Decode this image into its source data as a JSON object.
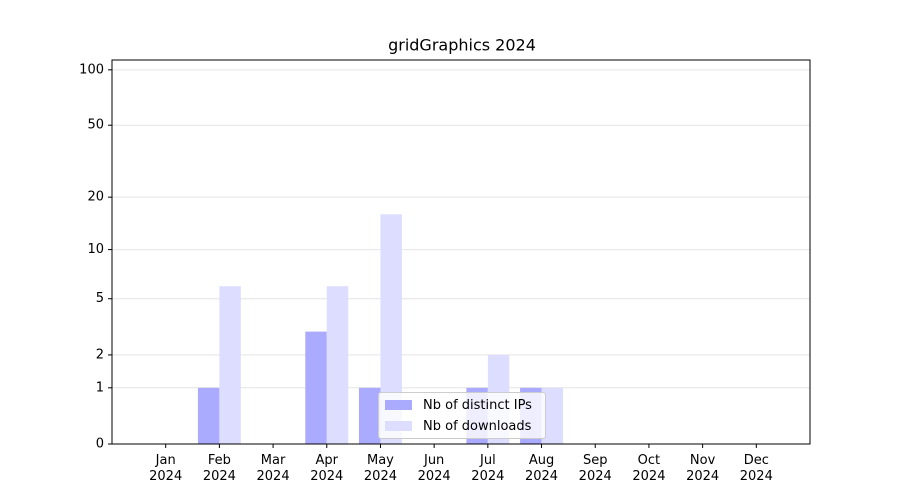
{
  "chart_data": {
    "type": "bar",
    "title": "gridGraphics 2024",
    "categories": [
      "Jan\n2024",
      "Feb\n2024",
      "Mar\n2024",
      "Apr\n2024",
      "May\n2024",
      "Jun\n2024",
      "Jul\n2024",
      "Aug\n2024",
      "Sep\n2024",
      "Oct\n2024",
      "Nov\n2024",
      "Dec\n2024"
    ],
    "series": [
      {
        "name": "Nb of distinct IPs",
        "color": "#aaaaff",
        "values": [
          0,
          1,
          0,
          3,
          1,
          0,
          1,
          1,
          0,
          0,
          0,
          0
        ]
      },
      {
        "name": "Nb of downloads",
        "color": "#ddddff",
        "values": [
          0,
          6,
          0,
          6,
          16,
          0,
          2,
          1,
          0,
          0,
          0,
          0
        ]
      }
    ],
    "yscale": "log1p",
    "ylim": [
      0,
      113
    ],
    "yticks": [
      0,
      1,
      2,
      5,
      10,
      20,
      50,
      100
    ],
    "grid": true,
    "legend": "lower center"
  }
}
